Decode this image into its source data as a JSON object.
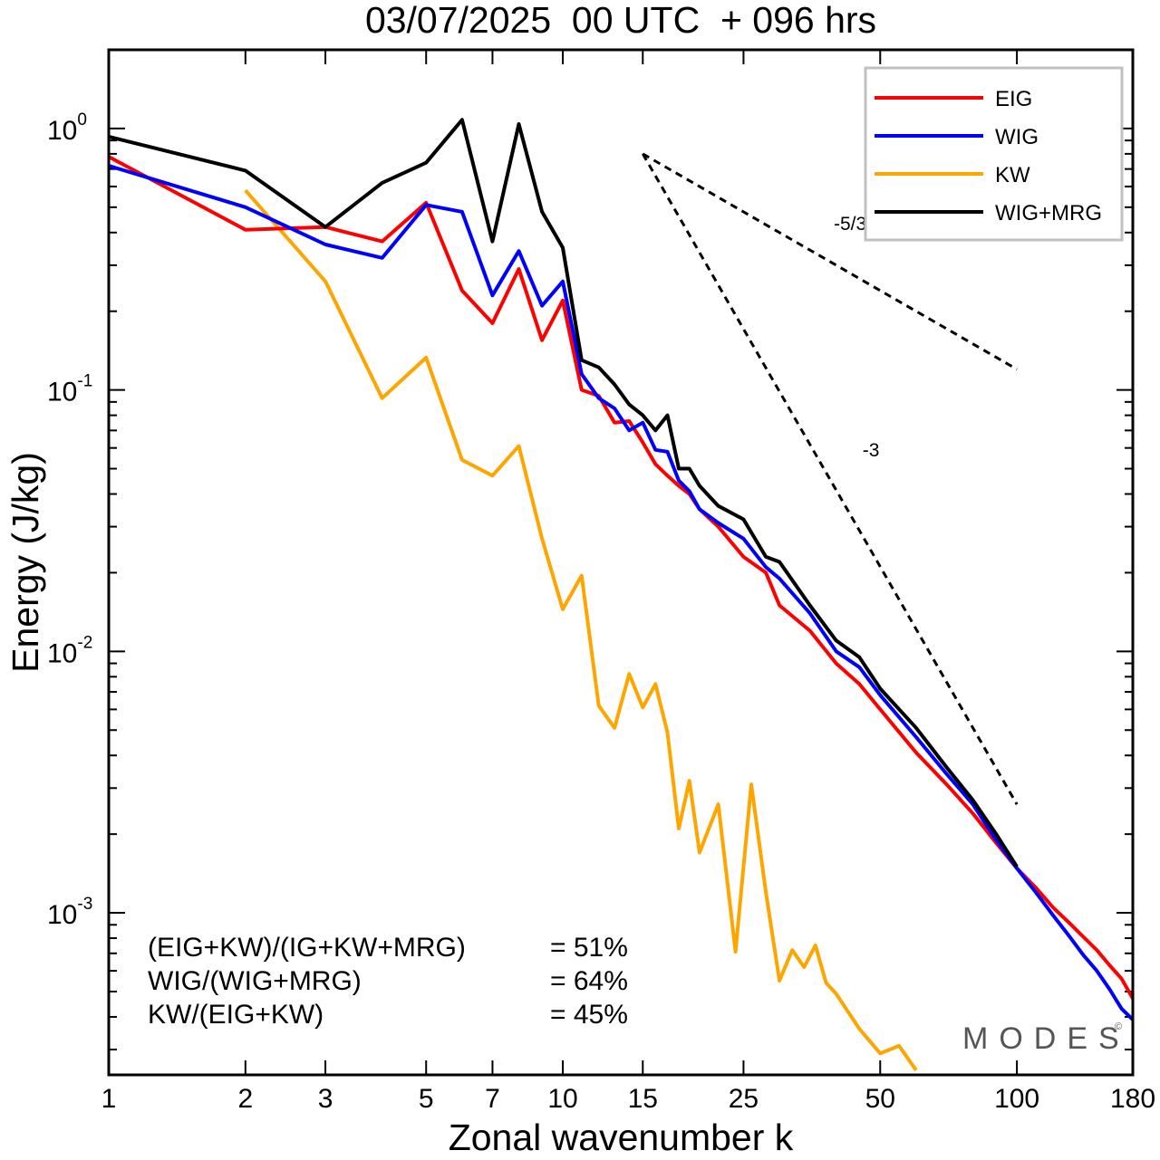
{
  "chart_data": {
    "type": "line",
    "title": "03/07/2025  00 UTC  + 096 hrs",
    "xlabel": "Zonal wavenumber k",
    "ylabel": "Energy (J/kg)",
    "x_scale": "log",
    "y_scale": "log",
    "xlim": [
      1,
      180
    ],
    "ylim": [
      0.00024,
      2.0
    ],
    "x_ticks": [
      1,
      2,
      3,
      5,
      7,
      10,
      15,
      25,
      50,
      100,
      180
    ],
    "x_tick_labels": [
      "1",
      "2",
      "3",
      "5",
      "7",
      "10",
      "15",
      "25",
      "50",
      "100",
      "180"
    ],
    "y_major_ticks": [
      {
        "value": 1,
        "base": "10",
        "exp": "0"
      },
      {
        "value": 0.1,
        "base": "10",
        "exp": "-1"
      },
      {
        "value": 0.01,
        "base": "10",
        "exp": "-2"
      },
      {
        "value": 0.001,
        "base": "10",
        "exp": "-3"
      }
    ],
    "legend_position": "top-right",
    "grid": false,
    "series": [
      {
        "name": "EIG",
        "color": "#ff0000",
        "x": [
          1,
          2,
          3,
          4,
          5,
          6,
          7,
          8,
          9,
          10,
          11,
          12,
          13,
          14,
          15,
          16,
          17,
          18,
          19,
          20,
          22,
          25,
          28,
          30,
          35,
          40,
          45,
          50,
          60,
          70,
          80,
          90,
          100,
          110,
          120,
          130,
          140,
          150,
          160,
          170,
          180
        ],
        "y": [
          0.78,
          0.41,
          0.42,
          0.37,
          0.52,
          0.24,
          0.18,
          0.29,
          0.155,
          0.22,
          0.1,
          0.095,
          0.075,
          0.076,
          0.063,
          0.052,
          0.047,
          0.043,
          0.04,
          0.035,
          0.03,
          0.023,
          0.02,
          0.015,
          0.012,
          0.009,
          0.0075,
          0.006,
          0.0041,
          0.0031,
          0.0024,
          0.00185,
          0.00148,
          0.00125,
          0.00105,
          0.00092,
          0.00081,
          0.00072,
          0.00063,
          0.00056,
          0.00047
        ]
      },
      {
        "name": "WIG",
        "color": "#0000ff",
        "x": [
          1,
          2,
          3,
          4,
          5,
          6,
          7,
          8,
          9,
          10,
          11,
          12,
          13,
          14,
          15,
          16,
          17,
          18,
          19,
          20,
          22,
          25,
          28,
          30,
          35,
          40,
          45,
          50,
          60,
          70,
          80,
          90,
          100,
          110,
          120,
          130,
          140,
          150,
          160,
          170,
          180
        ],
        "y": [
          0.72,
          0.5,
          0.36,
          0.32,
          0.51,
          0.48,
          0.23,
          0.34,
          0.21,
          0.26,
          0.115,
          0.093,
          0.085,
          0.07,
          0.075,
          0.059,
          0.058,
          0.045,
          0.041,
          0.035,
          0.031,
          0.027,
          0.021,
          0.019,
          0.014,
          0.01,
          0.0087,
          0.0068,
          0.0047,
          0.0034,
          0.0026,
          0.0019,
          0.00148,
          0.0012,
          0.00098,
          0.00082,
          0.00069,
          0.0006,
          0.00051,
          0.00043,
          0.00039
        ]
      },
      {
        "name": "KW",
        "color": "#ffa500",
        "x": [
          2,
          3,
          4,
          5,
          6,
          7,
          8,
          9,
          10,
          11,
          12,
          13,
          14,
          15,
          16,
          17,
          18,
          19,
          20,
          22,
          24,
          26,
          28,
          30,
          32,
          34,
          36,
          38,
          40,
          45,
          50,
          55,
          60
        ],
        "y": [
          0.58,
          0.26,
          0.093,
          0.133,
          0.054,
          0.047,
          0.061,
          0.027,
          0.0145,
          0.0195,
          0.0062,
          0.0051,
          0.0082,
          0.0061,
          0.0075,
          0.0049,
          0.0021,
          0.0032,
          0.0017,
          0.0026,
          0.00071,
          0.0031,
          0.0012,
          0.00055,
          0.00072,
          0.00062,
          0.00075,
          0.00054,
          0.00049,
          0.00036,
          0.00029,
          0.00031,
          0.00025
        ]
      },
      {
        "name": "WIG+MRG",
        "color": "#000000",
        "x": [
          1,
          2,
          3,
          4,
          5,
          6,
          7,
          8,
          9,
          10,
          11,
          12,
          13,
          14,
          15,
          16,
          17,
          18,
          19,
          20,
          22,
          25,
          28,
          30,
          35,
          40,
          45,
          50,
          60,
          70,
          80,
          90,
          100
        ],
        "y": [
          0.93,
          0.69,
          0.42,
          0.62,
          0.74,
          1.08,
          0.37,
          1.04,
          0.48,
          0.35,
          0.13,
          0.122,
          0.105,
          0.088,
          0.08,
          0.07,
          0.08,
          0.05,
          0.05,
          0.043,
          0.036,
          0.032,
          0.023,
          0.022,
          0.015,
          0.011,
          0.0095,
          0.0072,
          0.0051,
          0.0036,
          0.0027,
          0.002,
          0.0015
        ]
      }
    ],
    "reference_lines": [
      {
        "label": "-5/3",
        "slope": "-5/3",
        "x": [
          15,
          100
        ],
        "y": [
          0.8,
          0.12
        ]
      },
      {
        "label": "-3",
        "slope": "-3",
        "x": [
          15,
          100
        ],
        "y": [
          0.8,
          0.0026
        ]
      }
    ],
    "annotations": [
      {
        "text": "(EIG+KW)/(IG+KW+MRG)",
        "value": "= 51%"
      },
      {
        "text": "WIG/(WIG+MRG)",
        "value": "= 64%"
      },
      {
        "text": "KW/(EIG+KW)",
        "value": "= 45%"
      }
    ],
    "watermark": "MODES",
    "watermark_mark": "©"
  }
}
